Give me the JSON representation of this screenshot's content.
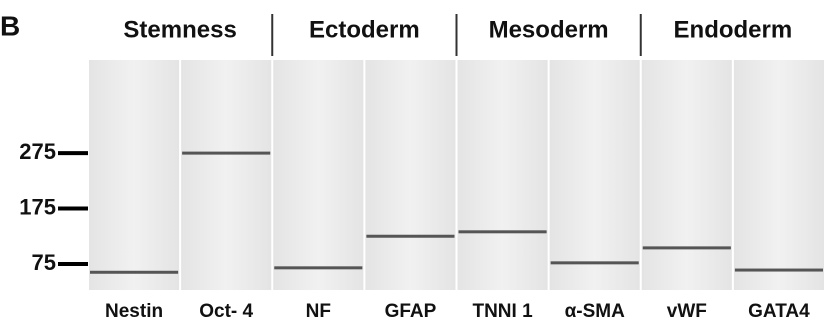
{
  "chart_data": {
    "type": "gel",
    "panel_label": "B",
    "groups": [
      "Stemness",
      "Ectoderm",
      "Mesoderm",
      "Endoderm"
    ],
    "categories": [
      "Nestin",
      "Oct- 4",
      "NF",
      "GFAP",
      "TNNI 1",
      "α-SMA",
      "vWF",
      "GATA4"
    ],
    "values": [
      60,
      275,
      68,
      125,
      133,
      77,
      104,
      64
    ],
    "ylim": [
      28,
      443
    ],
    "yticks": [
      75,
      175,
      275
    ],
    "color": "#555555"
  }
}
